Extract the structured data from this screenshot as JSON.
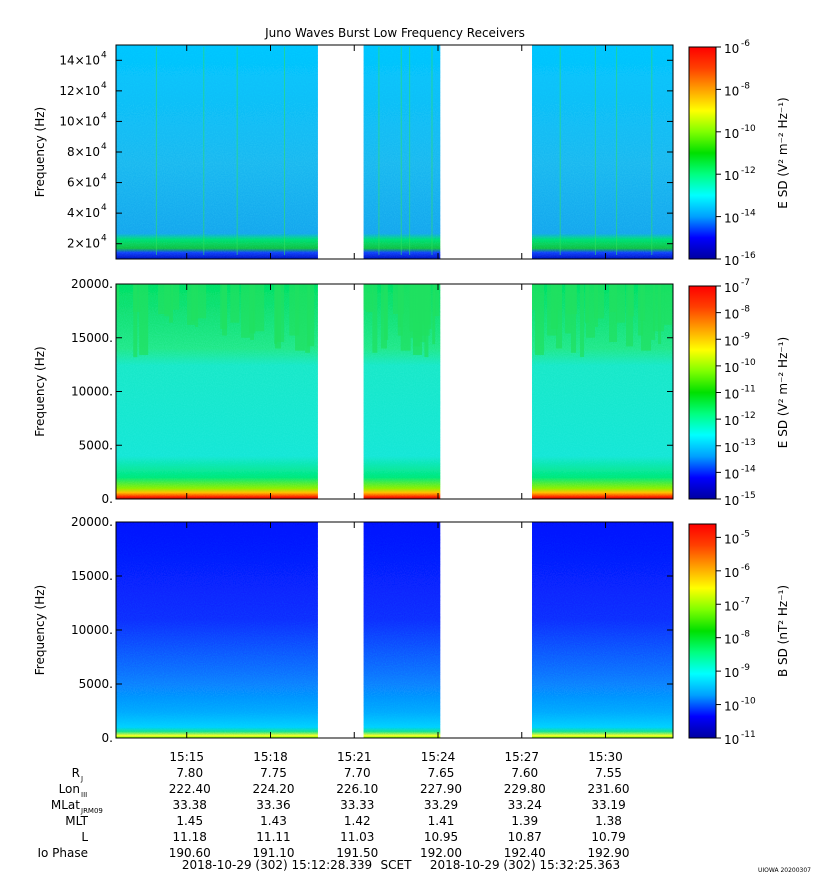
{
  "title": "Juno Waves Burst Low Frequency Receivers",
  "colors": {
    "gap": "#ffffff",
    "axis": "#000000",
    "colormap": [
      "#0000a0",
      "#0000ff",
      "#00a0ff",
      "#00ffff",
      "#00ff80",
      "#00e000",
      "#80ff00",
      "#ffff00",
      "#ffa000",
      "#ff4000",
      "#ff0000"
    ]
  },
  "chart_data": [
    {
      "type": "heatmap",
      "name": "panel-1",
      "ylabel": "Frequency (Hz)",
      "ylim": [
        10000,
        150000
      ],
      "yticks": [
        {
          "value": 20000,
          "label": "2×10",
          "exp": "4"
        },
        {
          "value": 40000,
          "label": "4×10",
          "exp": "4"
        },
        {
          "value": 60000,
          "label": "6×10",
          "exp": "4"
        },
        {
          "value": 80000,
          "label": "8×10",
          "exp": "4"
        },
        {
          "value": 100000,
          "label": "10×10",
          "exp": "4"
        },
        {
          "value": 120000,
          "label": "12×10",
          "exp": "4"
        },
        {
          "value": 140000,
          "label": "14×10",
          "exp": "4"
        }
      ],
      "colorbar": {
        "label": "E SD (V² m⁻² Hz⁻¹)",
        "log_range": [
          -16,
          -6
        ],
        "ticks": [
          {
            "exp": "-6"
          },
          {
            "exp": "-8"
          },
          {
            "exp": "-10"
          },
          {
            "exp": "-12"
          },
          {
            "exp": "-14"
          },
          {
            "exp": "-16"
          }
        ]
      },
      "data_intervals": [
        [
          "15:12:28",
          "15:19:42"
        ],
        [
          "15:21:20",
          "15:24:05"
        ],
        [
          "15:27:22",
          "15:32:25"
        ]
      ]
    },
    {
      "type": "heatmap",
      "name": "panel-2",
      "ylabel": "Frequency (Hz)",
      "ylim": [
        0,
        20000
      ],
      "yticks": [
        {
          "value": 0,
          "label": "0."
        },
        {
          "value": 5000,
          "label": "5000."
        },
        {
          "value": 10000,
          "label": "10000."
        },
        {
          "value": 15000,
          "label": "15000."
        },
        {
          "value": 20000,
          "label": "20000."
        }
      ],
      "colorbar": {
        "label": "E SD (V² m⁻² Hz⁻¹)",
        "log_range": [
          -15,
          -7
        ],
        "ticks": [
          {
            "exp": "-7"
          },
          {
            "exp": "-8"
          },
          {
            "exp": "-9"
          },
          {
            "exp": "-10"
          },
          {
            "exp": "-11"
          },
          {
            "exp": "-12"
          },
          {
            "exp": "-13"
          },
          {
            "exp": "-14"
          },
          {
            "exp": "-15"
          }
        ]
      },
      "data_intervals": [
        [
          "15:12:28",
          "15:19:42"
        ],
        [
          "15:21:20",
          "15:24:05"
        ],
        [
          "15:27:22",
          "15:32:25"
        ]
      ]
    },
    {
      "type": "heatmap",
      "name": "panel-3",
      "ylabel": "Frequency (Hz)",
      "ylim": [
        0,
        20000
      ],
      "yticks": [
        {
          "value": 0,
          "label": "0."
        },
        {
          "value": 5000,
          "label": "5000."
        },
        {
          "value": 10000,
          "label": "10000."
        },
        {
          "value": 15000,
          "label": "15000."
        },
        {
          "value": 20000,
          "label": "20000."
        }
      ],
      "colorbar": {
        "label": "B SD (nT² Hz⁻¹)",
        "log_range": [
          -11,
          -4.6
        ],
        "ticks": [
          {
            "exp": "-5"
          },
          {
            "exp": "-6"
          },
          {
            "exp": "-7"
          },
          {
            "exp": "-8"
          },
          {
            "exp": "-9"
          },
          {
            "exp": "-10"
          },
          {
            "exp": "-11"
          }
        ]
      },
      "data_intervals": [
        [
          "15:12:28",
          "15:19:42"
        ],
        [
          "15:21:20",
          "15:24:05"
        ],
        [
          "15:27:22",
          "15:32:25"
        ]
      ]
    }
  ],
  "time_axis": {
    "start": "15:12:28",
    "end": "15:32:25",
    "ticks": [
      "15:15",
      "15:18",
      "15:21",
      "15:24",
      "15:27",
      "15:30"
    ]
  },
  "ephemeris": {
    "rows": [
      {
        "label": "R",
        "sub": "J",
        "values": [
          "7.80",
          "7.75",
          "7.70",
          "7.65",
          "7.60",
          "7.55"
        ]
      },
      {
        "label": "Lon",
        "sub": "III",
        "values": [
          "222.40",
          "224.20",
          "226.10",
          "227.90",
          "229.80",
          "231.60"
        ]
      },
      {
        "label": "MLat",
        "sub": "JRM09",
        "values": [
          "33.38",
          "33.36",
          "33.33",
          "33.29",
          "33.24",
          "33.19"
        ]
      },
      {
        "label": "MLT",
        "sub": "",
        "values": [
          "1.45",
          "1.43",
          "1.42",
          "1.41",
          "1.39",
          "1.38"
        ]
      },
      {
        "label": "L",
        "sub": "",
        "values": [
          "11.18",
          "11.11",
          "11.03",
          "10.95",
          "10.87",
          "10.79"
        ]
      },
      {
        "label": "Io Phase",
        "sub": "",
        "values": [
          "190.60",
          "191.10",
          "191.50",
          "192.00",
          "192.40",
          "192.90"
        ]
      }
    ]
  },
  "footer": {
    "start_time": "2018-10-29 (302) 15:12:28.339",
    "scet": "SCET",
    "end_time": "2018-10-29 (302) 15:32:25.363",
    "stamp": "UIOWA 20200307"
  }
}
